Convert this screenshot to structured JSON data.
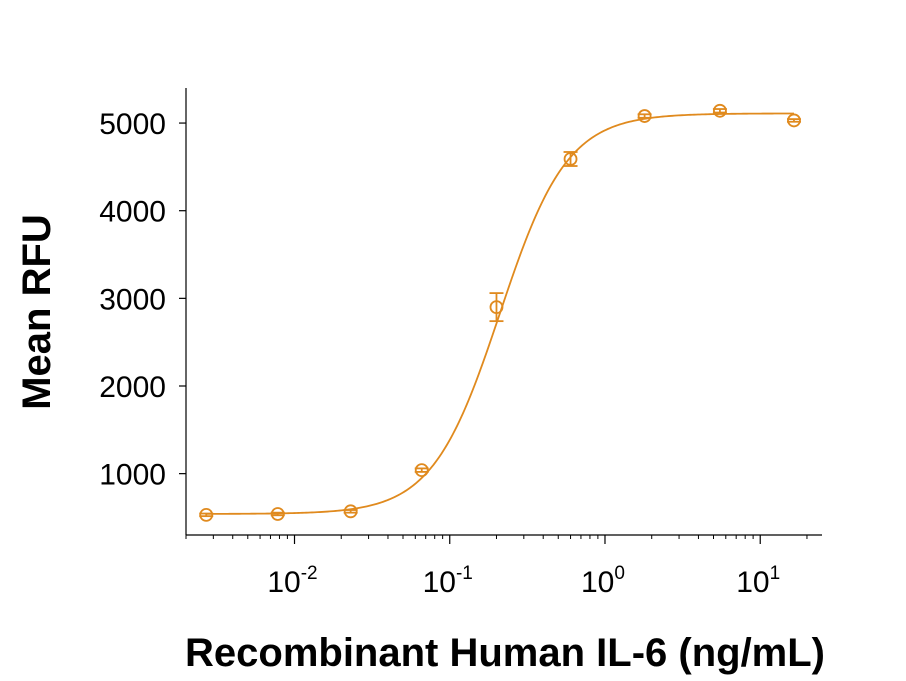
{
  "chart_data": {
    "type": "scatter",
    "xlabel": "Recombinant Human IL-6 (ng/mL)",
    "ylabel": "Mean RFU",
    "x_scale": "log",
    "xlim": [
      0.002,
      25
    ],
    "ylim": [
      300,
      5400
    ],
    "x_ticks": [
      {
        "value": 0.01,
        "base": "10",
        "exp": "-2"
      },
      {
        "value": 0.1,
        "base": "10",
        "exp": "-1"
      },
      {
        "value": 1,
        "base": "10",
        "exp": "0"
      },
      {
        "value": 10,
        "base": "10",
        "exp": "1"
      }
    ],
    "y_ticks": [
      1000,
      2000,
      3000,
      4000,
      5000
    ],
    "y_tick_labels": [
      "1000",
      "2000",
      "3000",
      "4000",
      "5000"
    ],
    "grid": false,
    "color": "#E08A1E",
    "series": [
      {
        "points": [
          {
            "x": 0.0027,
            "y": 530,
            "err": 15
          },
          {
            "x": 0.0078,
            "y": 540,
            "err": 15
          },
          {
            "x": 0.023,
            "y": 570,
            "err": 15
          },
          {
            "x": 0.066,
            "y": 1040,
            "err": 20
          },
          {
            "x": 0.2,
            "y": 2900,
            "err": 160
          },
          {
            "x": 0.6,
            "y": 4590,
            "err": 80
          },
          {
            "x": 1.8,
            "y": 5080,
            "err": 20
          },
          {
            "x": 5.5,
            "y": 5140,
            "err": 20
          },
          {
            "x": 16.5,
            "y": 5030,
            "err": 15
          }
        ],
        "fit": {
          "bottom": 540,
          "top": 5110,
          "ec50": 0.21,
          "hill": 2.0
        }
      }
    ]
  }
}
